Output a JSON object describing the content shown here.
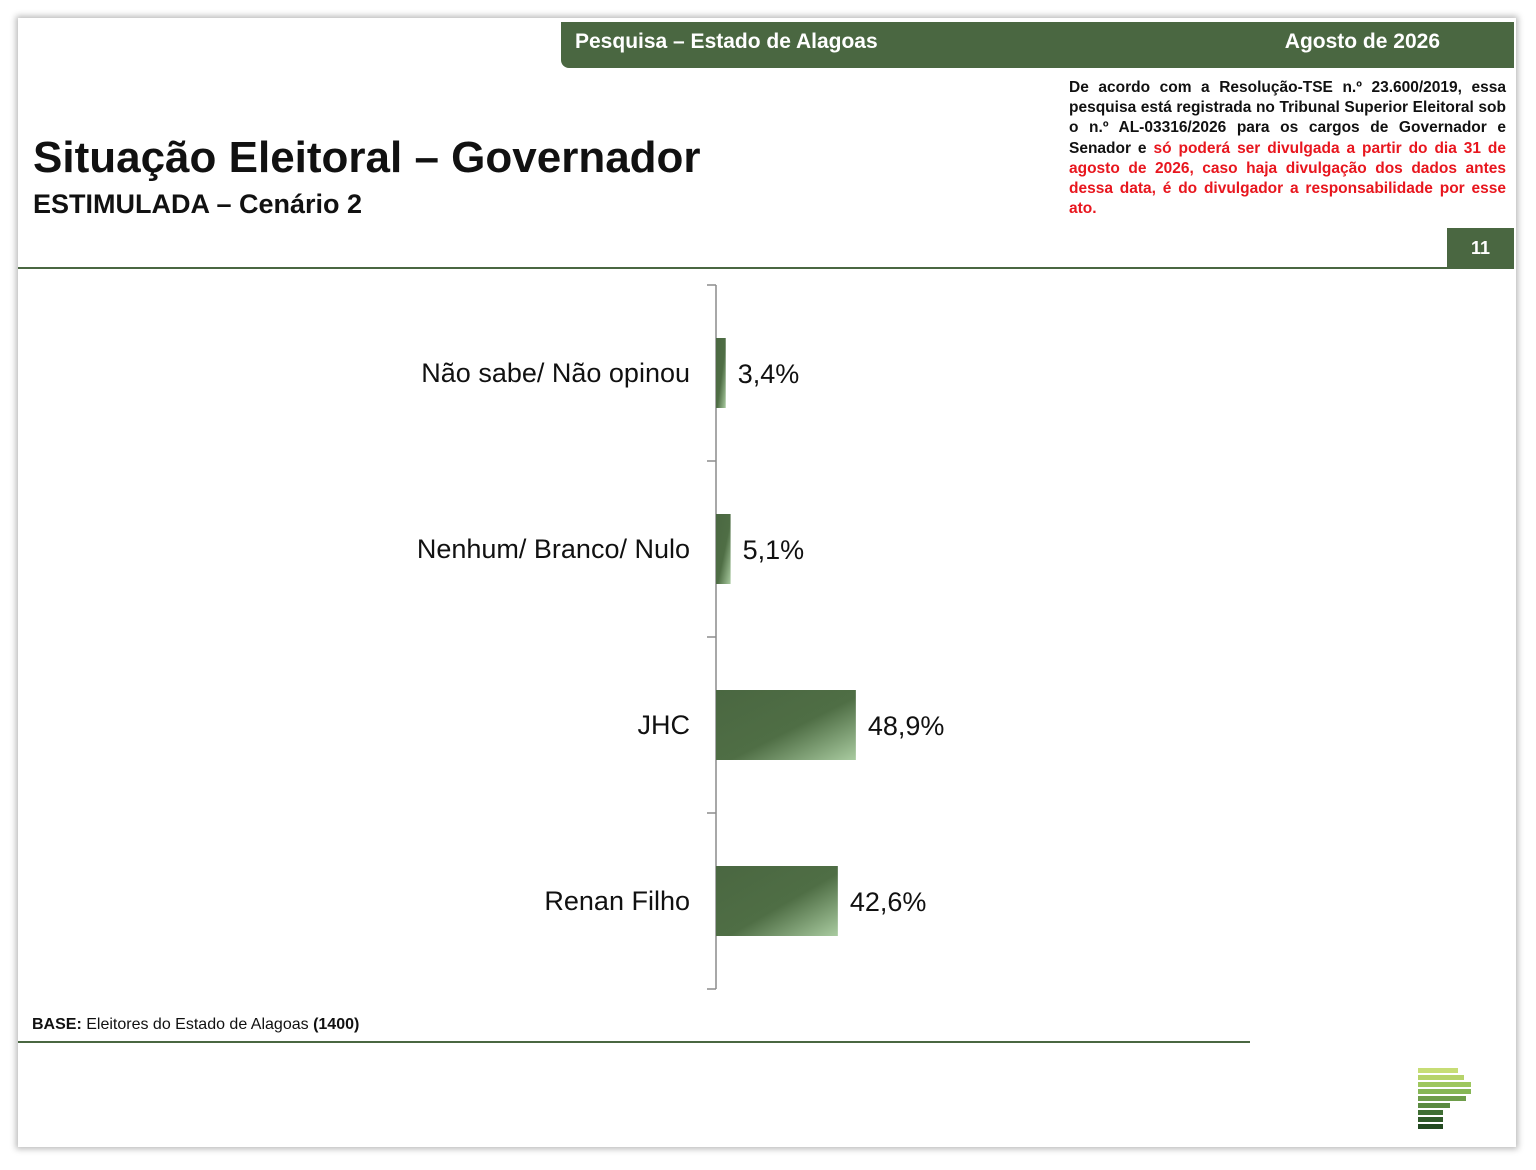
{
  "header": {
    "survey_label": "Pesquisa – Estado de Alagoas",
    "date_label": "Agosto de 2026"
  },
  "title": "Situação Eleitoral – Governador",
  "subtitle": "ESTIMULADA – Cenário 2",
  "disclaimer": {
    "normal": "De acordo com a Resolução-TSE n.º 23.600/2019, essa pesquisa está registrada no Tribunal Superior Eleitoral sob o n.º AL-03316/2026 para os cargos de Governador e Senador e ",
    "highlight": "só poderá ser divulgada a partir do dia 31 de agosto de 2026, caso haja divulgação dos dados antes dessa data, é do divulgador a responsabilidade por esse ato."
  },
  "page_number": "11",
  "base": {
    "label": "BASE:",
    "text": "Eleitores do Estado de Alagoas",
    "count": "(1400)"
  },
  "colors": {
    "brand_green": "#4a6741",
    "bar_dark": "#4a6741",
    "bar_light": "#a9cba0",
    "warning_red": "#e8161e"
  },
  "chart_data": {
    "type": "bar",
    "orientation": "horizontal",
    "categories": [
      "Não sabe/ Não opinou",
      "Nenhum/ Branco/ Nulo",
      "JHC",
      "Renan Filho"
    ],
    "values": [
      3.4,
      5.1,
      48.9,
      42.6
    ],
    "value_labels": [
      "3,4%",
      "5,1%",
      "48,9%",
      "42,6%"
    ],
    "unit": "%",
    "xlim": [
      0,
      100
    ],
    "grid": false,
    "legend": "none"
  }
}
